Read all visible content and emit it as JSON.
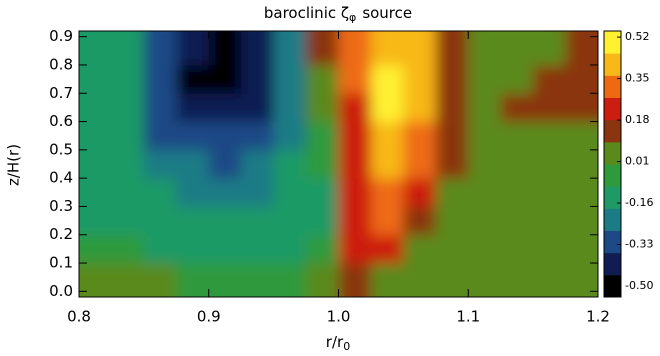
{
  "chart_data": {
    "type": "contour",
    "title": "baroclinic ζ",
    "title_subscript": "φ",
    "title_end": "source",
    "x_label": "r/r",
    "x_label_subscript": "0",
    "y_label": "z/H(r)",
    "xlim": [
      0.8,
      1.2
    ],
    "xticks": [
      0.8,
      0.9,
      {
        "value": 1,
        "label": "1.0"
      },
      1.1,
      1.2
    ],
    "ylim": [
      -0.02,
      0.92
    ],
    "yticks": [
      {
        "value": 0,
        "label": "0.0"
      },
      0.1,
      0.2,
      0.3,
      0.4,
      0.5,
      0.6,
      0.7,
      0.8,
      0.9
    ],
    "x": [
      0.8125,
      0.8375,
      0.8625,
      0.8875,
      0.9125,
      0.9375,
      0.9625,
      0.9875,
      1.0125,
      1.0375,
      1.0625,
      1.0875,
      1.1125,
      1.1375,
      1.1625,
      1.1875
    ],
    "y": [
      0.05,
      0.15,
      0.25,
      0.35,
      0.45,
      0.55,
      0.65,
      0.75,
      0.85
    ],
    "z": [
      [
        0.0,
        0.0,
        0.0,
        -0.05,
        -0.08,
        -0.08,
        -0.08,
        0.0,
        0.1,
        0.05,
        0.0,
        0.0,
        0.0,
        0.0,
        0.0,
        0.0
      ],
      [
        -0.05,
        -0.08,
        -0.1,
        -0.1,
        -0.12,
        -0.12,
        -0.12,
        -0.05,
        0.22,
        0.2,
        0.05,
        0.0,
        0.0,
        0.0,
        0.0,
        0.0
      ],
      [
        -0.1,
        -0.1,
        -0.12,
        -0.14,
        -0.16,
        -0.16,
        -0.14,
        -0.1,
        0.25,
        0.3,
        0.1,
        0.0,
        0.0,
        0.0,
        0.0,
        0.0
      ],
      [
        -0.1,
        -0.12,
        -0.16,
        -0.2,
        -0.22,
        -0.22,
        -0.16,
        -0.1,
        0.25,
        0.35,
        0.2,
        0.0,
        0.0,
        0.0,
        0.0,
        0.0
      ],
      [
        -0.12,
        -0.15,
        -0.22,
        -0.26,
        -0.28,
        -0.25,
        -0.18,
        -0.08,
        0.2,
        0.38,
        0.3,
        0.1,
        0.06,
        0.05,
        0.0,
        0.0
      ],
      [
        -0.12,
        -0.16,
        -0.28,
        -0.32,
        -0.35,
        -0.3,
        -0.2,
        -0.05,
        0.2,
        0.42,
        0.35,
        0.12,
        0.08,
        0.08,
        0.08,
        0.06
      ],
      [
        -0.12,
        -0.18,
        -0.3,
        -0.42,
        -0.45,
        -0.38,
        -0.22,
        0.0,
        0.25,
        0.48,
        0.4,
        0.14,
        0.08,
        0.12,
        0.1,
        0.1
      ],
      [
        -0.12,
        -0.18,
        -0.32,
        -0.47,
        -0.48,
        -0.4,
        -0.22,
        0.05,
        0.3,
        0.5,
        0.45,
        0.15,
        0.08,
        0.05,
        0.1,
        0.12
      ],
      [
        -0.12,
        -0.15,
        -0.3,
        -0.45,
        -0.48,
        -0.4,
        -0.2,
        0.1,
        0.3,
        0.45,
        0.4,
        0.15,
        0.08,
        0.06,
        0.05,
        0.1
      ]
    ],
    "clim": [
      -0.545,
      0.545
    ],
    "colorbar_ticks": [
      0.52,
      0.35,
      0.18,
      0.01,
      -0.16,
      -0.33,
      {
        "value": -0.5,
        "label": "-0.50"
      }
    ],
    "colormap": [
      "#000000",
      "#101c52",
      "#1d4a86",
      "#1c7c86",
      "#1f9a66",
      "#2e9a3c",
      "#5a8a1c",
      "#8a3410",
      "#cc1e10",
      "#ee6a12",
      "#f8b818",
      "#fff030"
    ]
  }
}
